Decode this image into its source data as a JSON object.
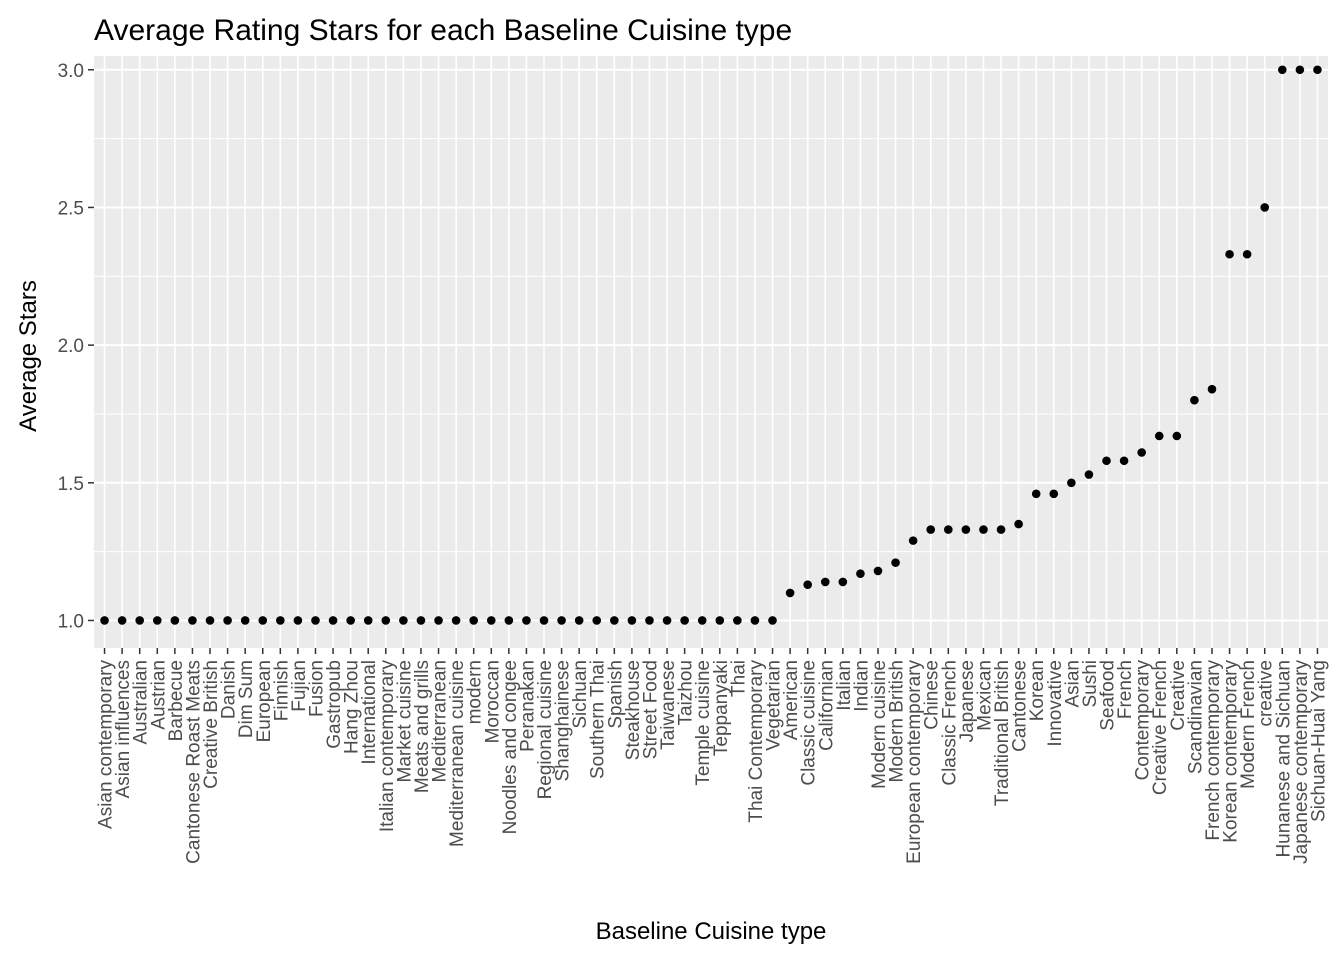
{
  "chart_data": {
    "type": "scatter",
    "title": "Average Rating Stars for each Baseline Cuisine type",
    "xlabel": "Baseline Cuisine type",
    "ylabel": "Average Stars",
    "ylim": [
      0.9,
      3.05
    ],
    "yticks": [
      1.0,
      1.5,
      2.0,
      2.5,
      3.0
    ],
    "ytick_labels": [
      "1.0",
      "1.5",
      "2.0",
      "2.5",
      "3.0"
    ],
    "grid": true,
    "legend": "none",
    "colors": {
      "panel": "#ebebeb",
      "grid": "#ffffff",
      "point": "#000000",
      "axis_text": "#4d4d4d"
    },
    "categories": [
      "Asian contemporary",
      "Asian influences",
      "Australian",
      "Austrian",
      "Barbecue",
      "Cantonese Roast Meats",
      "Creative British",
      "Danish",
      "Dim Sum",
      "European",
      "Finnish",
      "Fujian",
      "Fusion",
      "Gastropub",
      "Hang Zhou",
      "International",
      "Italian contemporary",
      "Market cuisine",
      "Meats and grills",
      "Mediterranean",
      "Mediterranean cuisine",
      "modern",
      "Moroccan",
      "Noodles and congee",
      "Peranakan",
      "Regional cuisine",
      "Shanghainese",
      "Sichuan",
      "Southern Thai",
      "Spanish",
      "Steakhouse",
      "Street Food",
      "Taiwanese",
      "Taizhou",
      "Temple cuisine",
      "Teppanyaki",
      "Thai",
      "Thai Contemporary",
      "Vegetarian",
      "American",
      "Classic cuisine",
      "Californian",
      "Italian",
      "Indian",
      "Modern cuisine",
      "Modern British",
      "European contemporary",
      "Chinese",
      "Classic French",
      "Japanese",
      "Mexican",
      "Traditional British",
      "Cantonese",
      "Korean",
      "Innovative",
      "Asian",
      "Sushi",
      "Seafood",
      "French",
      "Contemporary",
      "Creative French",
      "Creative",
      "Scandinavian",
      "French contemporary",
      "Korean contemporary",
      "Modern French",
      "creative",
      "Hunanese and Sichuan",
      "Japanese contemporary",
      "Sichuan-Huai Yang"
    ],
    "values": [
      1.0,
      1.0,
      1.0,
      1.0,
      1.0,
      1.0,
      1.0,
      1.0,
      1.0,
      1.0,
      1.0,
      1.0,
      1.0,
      1.0,
      1.0,
      1.0,
      1.0,
      1.0,
      1.0,
      1.0,
      1.0,
      1.0,
      1.0,
      1.0,
      1.0,
      1.0,
      1.0,
      1.0,
      1.0,
      1.0,
      1.0,
      1.0,
      1.0,
      1.0,
      1.0,
      1.0,
      1.0,
      1.0,
      1.0,
      1.1,
      1.13,
      1.14,
      1.14,
      1.17,
      1.18,
      1.21,
      1.29,
      1.33,
      1.33,
      1.33,
      1.33,
      1.33,
      1.35,
      1.46,
      1.46,
      1.5,
      1.53,
      1.58,
      1.58,
      1.61,
      1.67,
      1.67,
      1.8,
      1.84,
      2.33,
      2.33,
      2.5,
      3.0,
      3.0,
      3.0
    ]
  }
}
